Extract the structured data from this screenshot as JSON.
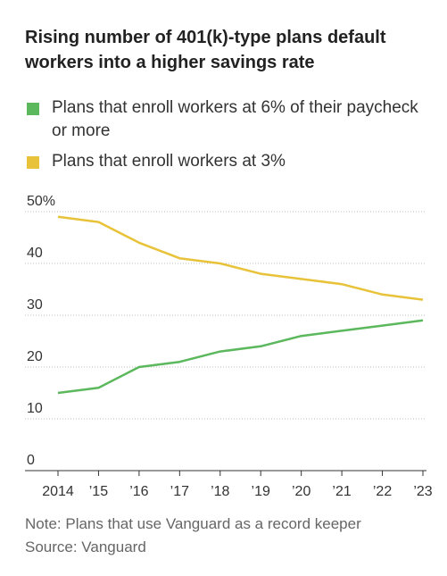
{
  "chart_data": {
    "type": "line",
    "title": "Rising number of 401(k)-type plans default workers into a higher savings rate",
    "categories": [
      "2014",
      "’15",
      "’16",
      "’17",
      "’18",
      "’19",
      "’20",
      "’21",
      "’22",
      "’23"
    ],
    "series": [
      {
        "name": "Plans that enroll workers at 6% of their paycheck or more",
        "color": "#5cb85c",
        "values": [
          15,
          16,
          20,
          21,
          23,
          24,
          26,
          27,
          28,
          29
        ]
      },
      {
        "name": "Plans that enroll workers at 3%",
        "color": "#e8c33a",
        "values": [
          49,
          48,
          44,
          41,
          40,
          38,
          37,
          36,
          34,
          33
        ]
      }
    ],
    "ylim": [
      0,
      50
    ],
    "yticks": [
      0,
      10,
      20,
      30,
      40,
      {
        "value": 50,
        "label": "50%"
      }
    ],
    "grid": true,
    "note": "Note: Plans that use Vanguard as a record keeper",
    "source": "Source: Vanguard"
  }
}
